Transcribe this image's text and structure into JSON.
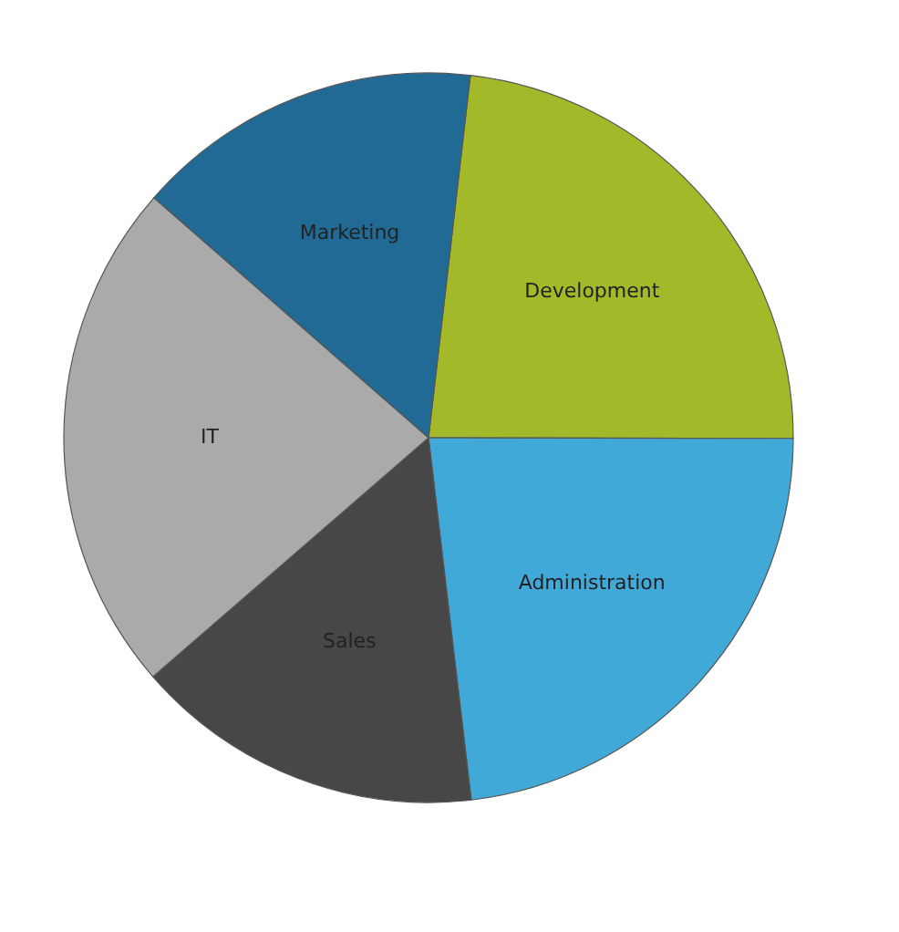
{
  "chart_data": {
    "type": "pie",
    "categories": [
      "Development",
      "Administration",
      "Sales",
      "IT",
      "Marketing"
    ],
    "values": [
      23.2,
      23.1,
      15.5,
      22.8,
      15.4
    ],
    "colors": [
      "#a4b92a",
      "#41a9d8",
      "#474747",
      "#aaaaaa",
      "#226a96"
    ],
    "legend": false
  }
}
